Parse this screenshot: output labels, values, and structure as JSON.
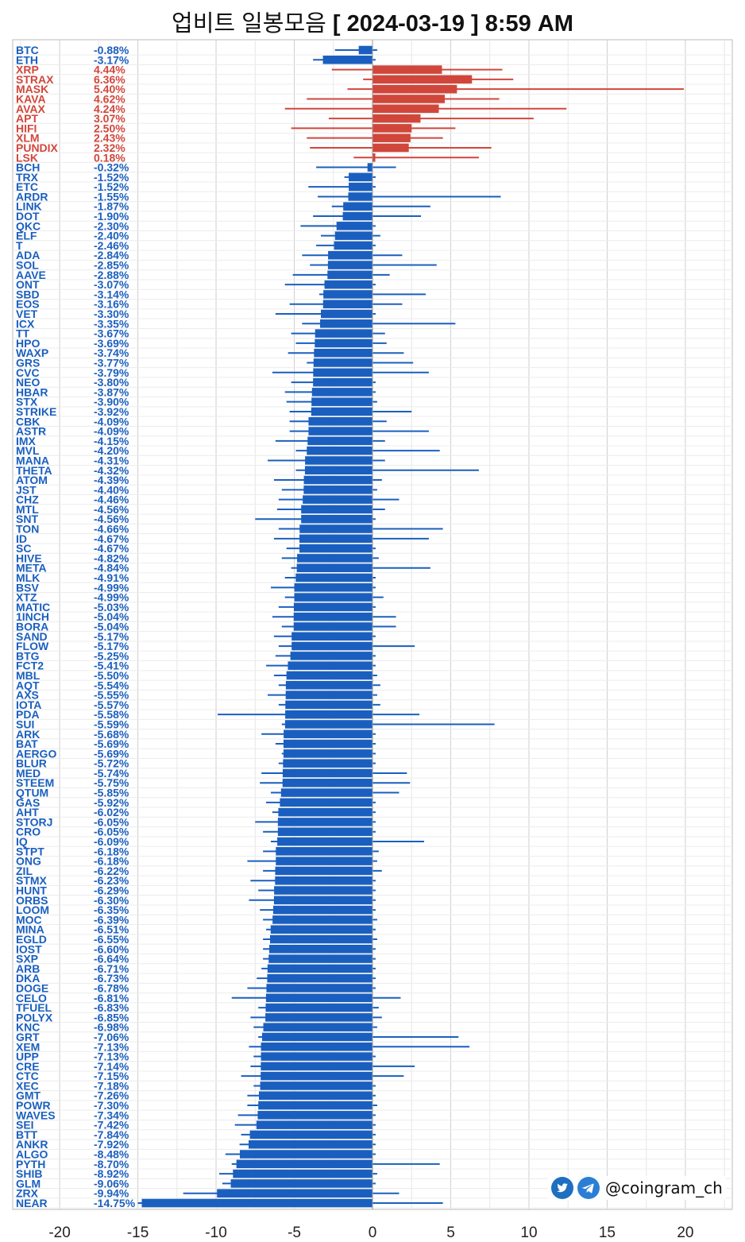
{
  "title": {
    "text": "업비트 일봉모음",
    "date": "[ 2024-03-19 ]  8:59 AM"
  },
  "watermark": {
    "handle": "@coingram_ch",
    "icons": [
      "twitter-icon",
      "telegram-icon"
    ]
  },
  "colors": {
    "up": "#d1463b",
    "down": "#1a5fbf",
    "grid": "#d8d8d8"
  },
  "chart_data": {
    "type": "bar",
    "orientation": "horizontal",
    "xlim": [
      -23,
      23
    ],
    "xticks": [
      -20,
      -15,
      -10,
      -5,
      0,
      5,
      10,
      15,
      20
    ],
    "grid": true,
    "series": [
      {
        "label": "BTC",
        "value": -0.88,
        "low": -2.4,
        "high": 0.3
      },
      {
        "label": "ETH",
        "value": -3.17,
        "low": -3.8,
        "high": 0.2
      },
      {
        "label": "XRP",
        "value": 4.44,
        "low": -2.6,
        "high": 8.3
      },
      {
        "label": "STRAX",
        "value": 6.36,
        "low": -0.6,
        "high": 9.0
      },
      {
        "label": "MASK",
        "value": 5.4,
        "low": -1.6,
        "high": 19.9
      },
      {
        "label": "KAVA",
        "value": 4.62,
        "low": -4.2,
        "high": 8.1
      },
      {
        "label": "AVAX",
        "value": 4.24,
        "low": -5.6,
        "high": 12.4
      },
      {
        "label": "APT",
        "value": 3.07,
        "low": -2.8,
        "high": 10.3
      },
      {
        "label": "HIFI",
        "value": 2.5,
        "low": -5.2,
        "high": 5.3
      },
      {
        "label": "XLM",
        "value": 2.43,
        "low": -4.2,
        "high": 4.5
      },
      {
        "label": "PUNDIX",
        "value": 2.32,
        "low": -4.0,
        "high": 7.6
      },
      {
        "label": "LSK",
        "value": 0.18,
        "low": -1.2,
        "high": 6.8
      },
      {
        "label": "BCH",
        "value": -0.32,
        "low": -3.6,
        "high": 1.5
      },
      {
        "label": "TRX",
        "value": -1.52,
        "low": -1.8,
        "high": 0.2
      },
      {
        "label": "ETC",
        "value": -1.52,
        "low": -4.1,
        "high": 0.2
      },
      {
        "label": "ARDR",
        "value": -1.55,
        "low": -3.5,
        "high": 8.2
      },
      {
        "label": "LINK",
        "value": -1.87,
        "low": -2.6,
        "high": 3.7
      },
      {
        "label": "DOT",
        "value": -1.9,
        "low": -3.8,
        "high": 3.1
      },
      {
        "label": "QKC",
        "value": -2.3,
        "low": -4.6,
        "high": 0.2
      },
      {
        "label": "ELF",
        "value": -2.4,
        "low": -3.3,
        "high": 0.5
      },
      {
        "label": "T",
        "value": -2.46,
        "low": -3.6,
        "high": 0.2
      },
      {
        "label": "ADA",
        "value": -2.84,
        "low": -4.5,
        "high": 1.9
      },
      {
        "label": "SOL",
        "value": -2.85,
        "low": -4.0,
        "high": 4.1
      },
      {
        "label": "AAVE",
        "value": -2.88,
        "low": -5.1,
        "high": 1.1
      },
      {
        "label": "ONT",
        "value": -3.07,
        "low": -5.6,
        "high": 0.2
      },
      {
        "label": "SBD",
        "value": -3.14,
        "low": -3.4,
        "high": 3.4
      },
      {
        "label": "EOS",
        "value": -3.16,
        "low": -5.3,
        "high": 1.9
      },
      {
        "label": "VET",
        "value": -3.3,
        "low": -6.2,
        "high": 0.2
      },
      {
        "label": "ICX",
        "value": -3.35,
        "low": -4.5,
        "high": 5.3
      },
      {
        "label": "TT",
        "value": -3.67,
        "low": -5.2,
        "high": 0.8
      },
      {
        "label": "HPO",
        "value": -3.69,
        "low": -4.9,
        "high": 0.9
      },
      {
        "label": "WAXP",
        "value": -3.74,
        "low": -5.4,
        "high": 2.0
      },
      {
        "label": "GRS",
        "value": -3.77,
        "low": -4.2,
        "high": 2.6
      },
      {
        "label": "CVC",
        "value": -3.79,
        "low": -6.4,
        "high": 3.6
      },
      {
        "label": "NEO",
        "value": -3.8,
        "low": -5.2,
        "high": 0.2
      },
      {
        "label": "HBAR",
        "value": -3.87,
        "low": -5.6,
        "high": 0.2
      },
      {
        "label": "STX",
        "value": -3.9,
        "low": -5.5,
        "high": 0.3
      },
      {
        "label": "STRIKE",
        "value": -3.92,
        "low": -5.3,
        "high": 2.5
      },
      {
        "label": "CBK",
        "value": -4.09,
        "low": -5.3,
        "high": 0.9
      },
      {
        "label": "ASTR",
        "value": -4.09,
        "low": -5.3,
        "high": 3.6
      },
      {
        "label": "IMX",
        "value": -4.15,
        "low": -6.2,
        "high": 0.8
      },
      {
        "label": "MVL",
        "value": -4.2,
        "low": -4.9,
        "high": 4.3
      },
      {
        "label": "MANA",
        "value": -4.31,
        "low": -6.7,
        "high": 0.8
      },
      {
        "label": "THETA",
        "value": -4.32,
        "low": -4.9,
        "high": 6.8
      },
      {
        "label": "ATOM",
        "value": -4.39,
        "low": -6.3,
        "high": 0.6
      },
      {
        "label": "JST",
        "value": -4.4,
        "low": -5.8,
        "high": 0.3
      },
      {
        "label": "CHZ",
        "value": -4.46,
        "low": -6.0,
        "high": 1.7
      },
      {
        "label": "MTL",
        "value": -4.56,
        "low": -6.1,
        "high": 0.8
      },
      {
        "label": "SNT",
        "value": -4.56,
        "low": -7.5,
        "high": 0.2
      },
      {
        "label": "TON",
        "value": -4.66,
        "low": -6.0,
        "high": 4.5
      },
      {
        "label": "ID",
        "value": -4.67,
        "low": -6.3,
        "high": 3.6
      },
      {
        "label": "SC",
        "value": -4.67,
        "low": -5.5,
        "high": 0.2
      },
      {
        "label": "HIVE",
        "value": -4.82,
        "low": -5.8,
        "high": 0.4
      },
      {
        "label": "META",
        "value": -4.84,
        "low": -5.2,
        "high": 3.7
      },
      {
        "label": "MLK",
        "value": -4.91,
        "low": -5.6,
        "high": 0.2
      },
      {
        "label": "BSV",
        "value": -4.99,
        "low": -6.5,
        "high": 0.2
      },
      {
        "label": "XTZ",
        "value": -4.99,
        "low": -5.6,
        "high": 0.7
      },
      {
        "label": "MATIC",
        "value": -5.03,
        "low": -6.0,
        "high": 0.2
      },
      {
        "label": "1INCH",
        "value": -5.04,
        "low": -6.4,
        "high": 1.5
      },
      {
        "label": "BORA",
        "value": -5.04,
        "low": -5.8,
        "high": 1.5
      },
      {
        "label": "SAND",
        "value": -5.17,
        "low": -6.3,
        "high": 0.2
      },
      {
        "label": "FLOW",
        "value": -5.17,
        "low": -6.0,
        "high": 2.7
      },
      {
        "label": "BTG",
        "value": -5.25,
        "low": -6.2,
        "high": 0.2
      },
      {
        "label": "FCT2",
        "value": -5.41,
        "low": -6.8,
        "high": 0.2
      },
      {
        "label": "MBL",
        "value": -5.5,
        "low": -6.3,
        "high": 0.3
      },
      {
        "label": "AQT",
        "value": -5.54,
        "low": -6.0,
        "high": 0.5
      },
      {
        "label": "AXS",
        "value": -5.55,
        "low": -6.7,
        "high": 0.3
      },
      {
        "label": "IOTA",
        "value": -5.57,
        "low": -6.0,
        "high": 0.5
      },
      {
        "label": "PDA",
        "value": -5.58,
        "low": -9.9,
        "high": 3.0
      },
      {
        "label": "SUI",
        "value": -5.59,
        "low": -5.8,
        "high": 7.8
      },
      {
        "label": "ARK",
        "value": -5.68,
        "low": -7.1,
        "high": 0.2
      },
      {
        "label": "BAT",
        "value": -5.69,
        "low": -6.2,
        "high": 0.2
      },
      {
        "label": "AERGO",
        "value": -5.69,
        "low": -5.8,
        "high": 0.2
      },
      {
        "label": "BLUR",
        "value": -5.72,
        "low": -6.0,
        "high": 0.2
      },
      {
        "label": "MED",
        "value": -5.74,
        "low": -7.1,
        "high": 2.2
      },
      {
        "label": "STEEM",
        "value": -5.75,
        "low": -7.2,
        "high": 2.4
      },
      {
        "label": "QTUM",
        "value": -5.85,
        "low": -6.5,
        "high": 1.7
      },
      {
        "label": "GAS",
        "value": -5.92,
        "low": -6.8,
        "high": 0.2
      },
      {
        "label": "AHT",
        "value": -6.02,
        "low": -6.4,
        "high": 0.2
      },
      {
        "label": "STORJ",
        "value": -6.05,
        "low": -7.5,
        "high": 0.2
      },
      {
        "label": "CRO",
        "value": -6.05,
        "low": -7.0,
        "high": 0.2
      },
      {
        "label": "IQ",
        "value": -6.09,
        "low": -6.5,
        "high": 3.3
      },
      {
        "label": "STPT",
        "value": -6.18,
        "low": -7.0,
        "high": 0.4
      },
      {
        "label": "ONG",
        "value": -6.18,
        "low": -8.0,
        "high": 0.3
      },
      {
        "label": "ZIL",
        "value": -6.22,
        "low": -7.0,
        "high": 0.6
      },
      {
        "label": "STMX",
        "value": -6.23,
        "low": -7.8,
        "high": 0.2
      },
      {
        "label": "HUNT",
        "value": -6.29,
        "low": -7.3,
        "high": 0.2
      },
      {
        "label": "ORBS",
        "value": -6.3,
        "low": -7.9,
        "high": 0.2
      },
      {
        "label": "LOOM",
        "value": -6.35,
        "low": -7.2,
        "high": 0.2
      },
      {
        "label": "MOC",
        "value": -6.39,
        "low": -7.0,
        "high": 0.3
      },
      {
        "label": "MINA",
        "value": -6.51,
        "low": -6.8,
        "high": 0.2
      },
      {
        "label": "EGLD",
        "value": -6.55,
        "low": -7.0,
        "high": 0.3
      },
      {
        "label": "IOST",
        "value": -6.6,
        "low": -7.0,
        "high": 0.2
      },
      {
        "label": "SXP",
        "value": -6.64,
        "low": -7.0,
        "high": 0.2
      },
      {
        "label": "ARB",
        "value": -6.71,
        "low": -7.1,
        "high": 0.2
      },
      {
        "label": "DKA",
        "value": -6.73,
        "low": -7.4,
        "high": 0.2
      },
      {
        "label": "DOGE",
        "value": -6.78,
        "low": -8.0,
        "high": 0.2
      },
      {
        "label": "CELO",
        "value": -6.81,
        "low": -9.0,
        "high": 1.8
      },
      {
        "label": "TFUEL",
        "value": -6.83,
        "low": -7.3,
        "high": 0.4
      },
      {
        "label": "POLYX",
        "value": -6.85,
        "low": -7.8,
        "high": 0.6
      },
      {
        "label": "KNC",
        "value": -6.98,
        "low": -7.6,
        "high": 0.3
      },
      {
        "label": "GRT",
        "value": -7.06,
        "low": -7.3,
        "high": 5.5
      },
      {
        "label": "XEM",
        "value": -7.13,
        "low": -7.9,
        "high": 6.2
      },
      {
        "label": "UPP",
        "value": -7.13,
        "low": -7.6,
        "high": 0.2
      },
      {
        "label": "CRE",
        "value": -7.14,
        "low": -7.8,
        "high": 2.7
      },
      {
        "label": "CTC",
        "value": -7.15,
        "low": -8.4,
        "high": 2.0
      },
      {
        "label": "XEC",
        "value": -7.18,
        "low": -7.6,
        "high": 0.2
      },
      {
        "label": "GMT",
        "value": -7.26,
        "low": -8.0,
        "high": 0.2
      },
      {
        "label": "POWR",
        "value": -7.3,
        "low": -8.0,
        "high": 0.3
      },
      {
        "label": "WAVES",
        "value": -7.34,
        "low": -8.6,
        "high": 0.2
      },
      {
        "label": "SEI",
        "value": -7.42,
        "low": -8.8,
        "high": 0.2
      },
      {
        "label": "BTT",
        "value": -7.84,
        "low": -8.4,
        "high": 0.2
      },
      {
        "label": "ANKR",
        "value": -7.92,
        "low": -8.5,
        "high": 0.2
      },
      {
        "label": "ALGO",
        "value": -8.48,
        "low": -9.4,
        "high": 0.2
      },
      {
        "label": "PYTH",
        "value": -8.7,
        "low": -9.0,
        "high": 4.3
      },
      {
        "label": "SHIB",
        "value": -8.92,
        "low": -9.8,
        "high": 0.3
      },
      {
        "label": "GLM",
        "value": -9.06,
        "low": -9.6,
        "high": 0.2
      },
      {
        "label": "ZRX",
        "value": -9.94,
        "low": -12.1,
        "high": 1.7
      },
      {
        "label": "NEAR",
        "value": -14.75,
        "low": -15.0,
        "high": 4.5
      }
    ]
  }
}
